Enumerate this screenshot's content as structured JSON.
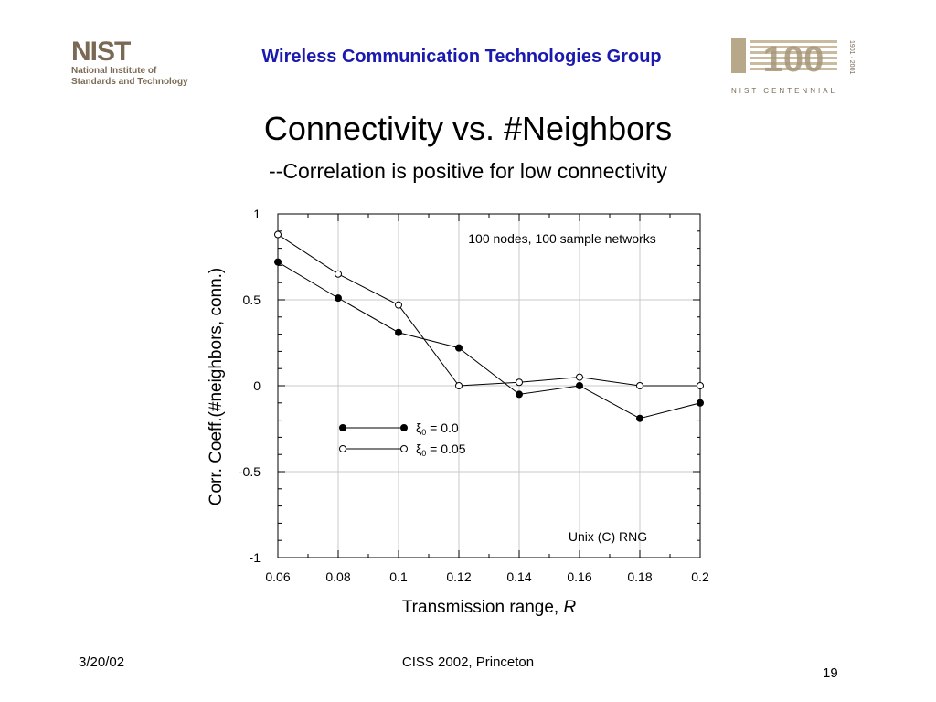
{
  "header": {
    "logo_nist": "NIST",
    "logo_line1": "National Institute of",
    "logo_line2": "Standards and Technology",
    "group_title": "Wireless Communication Technologies Group",
    "centennial_number": "100",
    "centennial_years": "1901 · 2001",
    "centennial_label": "NIST CENTENNIAL"
  },
  "slide": {
    "title": "Connectivity vs. #Neighbors",
    "subtitle": "--Correlation is positive for low connectivity"
  },
  "chart_data": {
    "type": "line",
    "annotation_top": "100 nodes, 100 sample networks",
    "annotation_bottom": "Unix (C) RNG",
    "xlabel": "Transmission range, ",
    "xlabel_italic": "R",
    "ylabel": "Corr. Coeff.(#neighbors, conn.)",
    "xlim": [
      0.06,
      0.2
    ],
    "ylim": [
      -1,
      1
    ],
    "x_ticks": [
      "0.06",
      "0.08",
      "0.1",
      "0.12",
      "0.14",
      "0.16",
      "0.18",
      "0.2"
    ],
    "y_ticks": [
      "1",
      "0.5",
      "0",
      "-0.5",
      "-1"
    ],
    "grid": true,
    "legend_position": "middle-left",
    "x": [
      0.06,
      0.08,
      0.1,
      0.12,
      0.14,
      0.16,
      0.18,
      0.2
    ],
    "series": [
      {
        "name": "ξ",
        "name_sub": "0",
        "name_rest": " = 0.0",
        "marker": "filled",
        "values": [
          0.72,
          0.51,
          0.31,
          0.22,
          -0.05,
          0.0,
          -0.19,
          -0.1
        ]
      },
      {
        "name": "ξ",
        "name_sub": "0",
        "name_rest": " = 0.05",
        "marker": "open",
        "values": [
          0.88,
          0.65,
          0.47,
          0.0,
          0.02,
          0.05,
          0.0,
          0.0
        ]
      }
    ]
  },
  "footer": {
    "date": "3/20/02",
    "conference": "CISS 2002, Princeton",
    "page": "19"
  }
}
